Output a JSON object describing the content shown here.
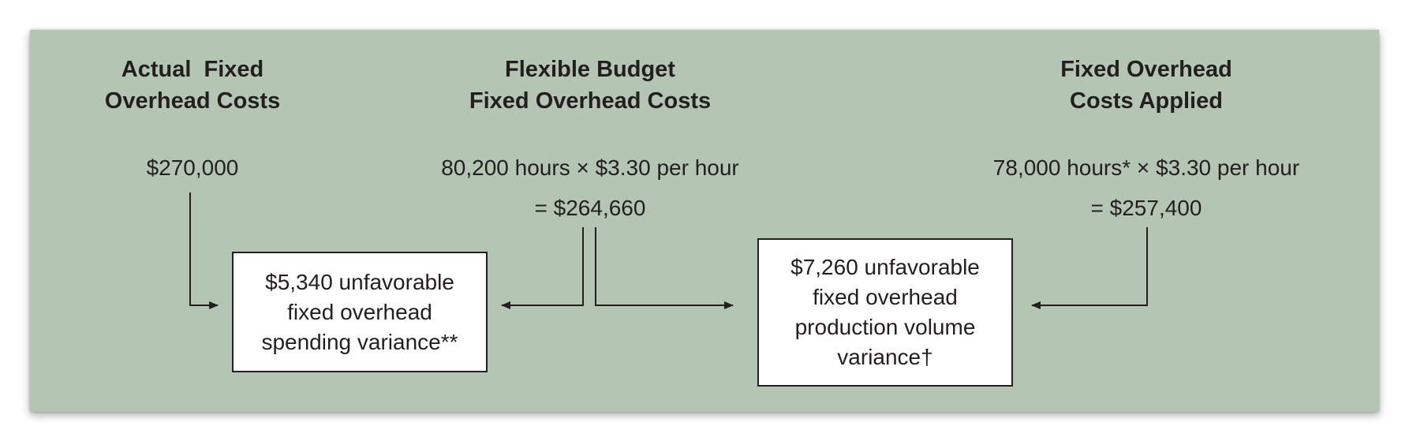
{
  "columns": {
    "actual": {
      "heading": [
        "Actual  Fixed",
        "Overhead Costs"
      ],
      "amount": "$270,000"
    },
    "flexible": {
      "heading": [
        "Flexible Budget",
        "Fixed Overhead Costs"
      ],
      "calc": "80,200 hours × $3.30 per hour",
      "result": "=  $264,660"
    },
    "applied": {
      "heading": [
        "Fixed Overhead",
        "Costs Applied"
      ],
      "calc": "78,000 hours* × $3.30 per hour",
      "result": "=  $257,400"
    }
  },
  "variances": {
    "spending": [
      "$5,340 unfavorable",
      "fixed overhead",
      "spending variance**"
    ],
    "volume": [
      "$7,260 unfavorable",
      "fixed overhead",
      "production volume",
      "variance†"
    ]
  },
  "colors": {
    "panel": "#b4c5b4",
    "text": "#231f20",
    "box": "#ffffff"
  }
}
